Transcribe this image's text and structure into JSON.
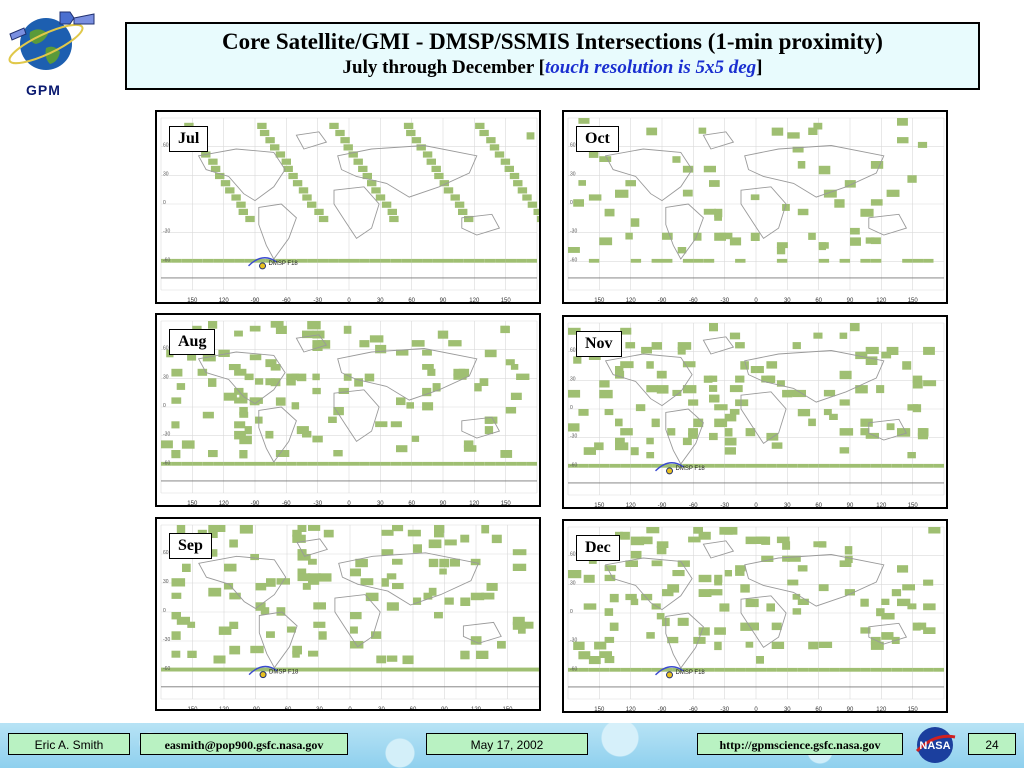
{
  "header": {
    "logo_text": "GPM",
    "title_line1": "Core Satellite/GMI - DMSP/SSMIS Intersections (1-min proximity)",
    "title_line2_prefix": "July through December [",
    "title_line2_emphasis": "touch resolution is 5x5 deg",
    "title_line2_suffix": "]",
    "emphasis_color": "#1a2fd0"
  },
  "maps": [
    {
      "label": "Jul",
      "pattern": "swaths",
      "annotation": "DMSP F18"
    },
    {
      "label": "Oct",
      "pattern": "scatter-light",
      "annotation": ""
    },
    {
      "label": "Aug",
      "pattern": "scatter",
      "annotation": ""
    },
    {
      "label": "Nov",
      "pattern": "scatter-band",
      "annotation": "DMSP F18"
    },
    {
      "label": "Sep",
      "pattern": "scatter-band",
      "annotation": "DMSP F18"
    },
    {
      "label": "Dec",
      "pattern": "scatter-band",
      "annotation": "DMSP F18"
    }
  ],
  "map_axis": {
    "longitude_ticks": [
      "150",
      "120",
      "-90",
      "-60",
      "-30",
      "0",
      "30",
      "60",
      "90",
      "120",
      "150"
    ],
    "latitude_ticks": [
      "60",
      "30",
      "0",
      "-30",
      "-60"
    ]
  },
  "colors": {
    "touch_cell": "#9fbf72",
    "coastline": "#9a9a9a",
    "grid": "#d9d9d9"
  },
  "footer": {
    "author": "Eric A. Smith",
    "email": "easmith@pop900.gsfc.nasa.gov",
    "date": "May 17, 2002",
    "url": "http://gpmscience.gsfc.nasa.gov",
    "page_number": "24",
    "nasa_logo_text": "NASA"
  }
}
